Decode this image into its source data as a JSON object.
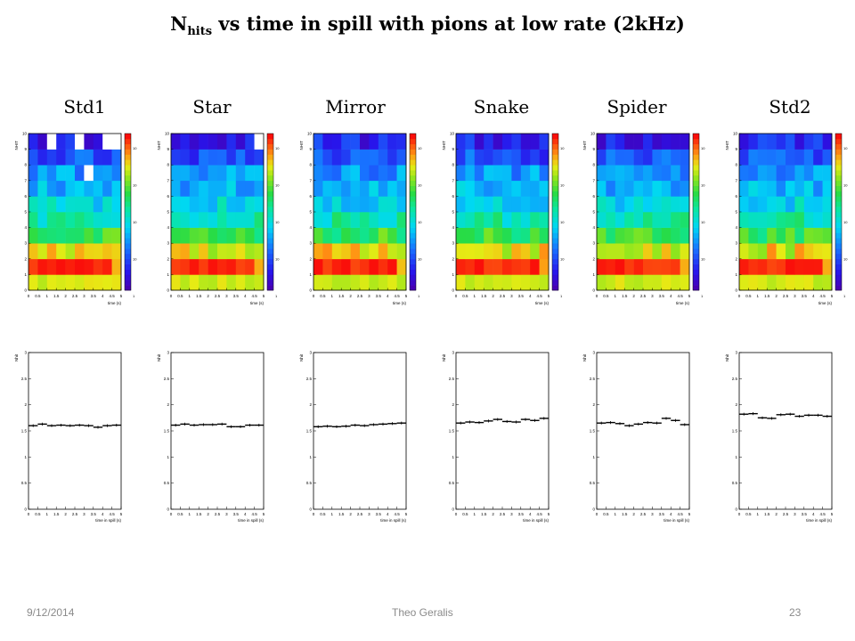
{
  "slide": {
    "title_main": "N",
    "title_sub": "hits",
    "title_rest": " vs time in spill with pions at low rate (2kHz)"
  },
  "labels": [
    "Std1",
    "Star",
    "Mirror",
    "Snake",
    "Spider",
    "Std2"
  ],
  "footer": {
    "date": "9/12/2014",
    "author": "Theo Geralis",
    "page": "23"
  },
  "chart_data": [
    {
      "type": "heatmap",
      "group": "2D histograms (NHIT vs time)",
      "panels": [
        "Std1",
        "Star",
        "Mirror",
        "Snake",
        "Spider",
        "Std2"
      ],
      "ylabel": "NHIT",
      "xlabel": "time (s)",
      "xlim": [
        0,
        5
      ],
      "ylim": [
        0,
        10
      ],
      "x_ticks": [
        "0",
        "0.5",
        "1",
        "1.5",
        "2",
        "2.5",
        "3",
        "3.5",
        "4",
        "4.5",
        "5"
      ],
      "y_ticks": [
        "0",
        "1",
        "2",
        "3",
        "4",
        "5",
        "6",
        "7",
        "8",
        "9",
        "10"
      ],
      "color_scale": "log (z)",
      "zlabels": [
        "10",
        "10",
        "10",
        "10",
        "1"
      ],
      "z_level_rows_bottom_to_top_approx": [
        0.78,
        0.98,
        0.8,
        0.62,
        0.5,
        0.42,
        0.35,
        0.3,
        0.2,
        0.12
      ],
      "z_level_range": [
        0,
        1
      ],
      "empty_cells_note": "white bins appear in top rows of Std1 and Star"
    },
    {
      "type": "line",
      "group": "Nhit profiles vs time in spill",
      "xlabel": "time in spill (s)",
      "ylabel": "Nhit",
      "xlim": [
        0,
        5
      ],
      "ylim": [
        0,
        3
      ],
      "x": [
        0.25,
        0.75,
        1.25,
        1.75,
        2.25,
        2.75,
        3.25,
        3.75,
        4.25,
        4.75
      ],
      "x_ticks": [
        "0",
        "0.5",
        "1",
        "1.5",
        "2",
        "2.5",
        "3",
        "3.5",
        "4",
        "4.5",
        "5"
      ],
      "y_ticks": [
        "0",
        "0.5",
        "1",
        "1.5",
        "2",
        "2.5",
        "3"
      ],
      "series": [
        {
          "name": "Std1",
          "values": [
            1.6,
            1.63,
            1.6,
            1.61,
            1.6,
            1.61,
            1.6,
            1.57,
            1.6,
            1.61
          ]
        },
        {
          "name": "Star",
          "values": [
            1.61,
            1.63,
            1.61,
            1.62,
            1.62,
            1.63,
            1.58,
            1.58,
            1.61,
            1.61
          ]
        },
        {
          "name": "Mirror",
          "values": [
            1.58,
            1.59,
            1.58,
            1.59,
            1.61,
            1.6,
            1.62,
            1.63,
            1.64,
            1.65
          ]
        },
        {
          "name": "Snake",
          "values": [
            1.65,
            1.67,
            1.66,
            1.69,
            1.72,
            1.68,
            1.67,
            1.72,
            1.7,
            1.74
          ]
        },
        {
          "name": "Spider",
          "values": [
            1.65,
            1.66,
            1.64,
            1.6,
            1.63,
            1.66,
            1.65,
            1.74,
            1.7,
            1.62
          ]
        },
        {
          "name": "Std2",
          "values": [
            1.82,
            1.83,
            1.75,
            1.74,
            1.81,
            1.82,
            1.78,
            1.8,
            1.8,
            1.78
          ]
        }
      ]
    }
  ]
}
